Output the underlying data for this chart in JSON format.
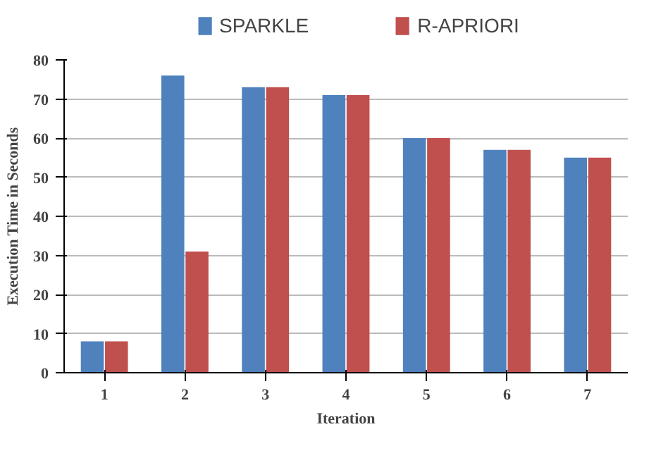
{
  "chart_data": {
    "type": "bar",
    "xlabel": "Iteration",
    "ylabel": "Execution Time in Seconds",
    "categories": [
      "1",
      "2",
      "3",
      "4",
      "5",
      "6",
      "7"
    ],
    "series": [
      {
        "name": "SPARKLE",
        "color": "#4f81bd",
        "values": [
          8,
          76,
          73,
          71,
          60,
          57,
          55
        ]
      },
      {
        "name": "R-APRIORI",
        "color": "#c0504d",
        "values": [
          8,
          31,
          73,
          71,
          60,
          57,
          55
        ]
      }
    ],
    "ylim": [
      0,
      80
    ],
    "yticks": [
      0,
      10,
      20,
      30,
      40,
      50,
      60,
      70,
      80
    ],
    "grid": "y",
    "legend": "top"
  }
}
